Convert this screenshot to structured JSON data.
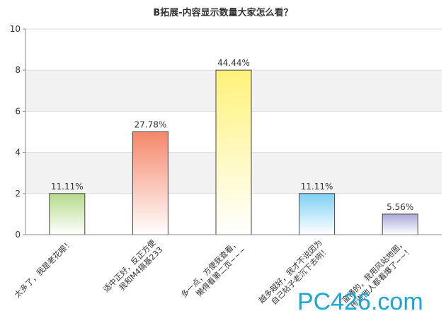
{
  "chart_data": {
    "type": "bar",
    "title": "B拓展-内容显示数量大家怎么看？",
    "categories": [
      "太多了，我是老花眼！",
      "适中正好，反正方便我和M4搞基233",
      "多一点，方便我查看，懒得看第二页~~~",
      "越多越好，我才不说因为自己帖子老沉下去咧！",
      "蛮横的，我用风站地图，传说他人都看爆了~~！"
    ],
    "values": [
      2,
      5,
      8,
      2,
      1
    ],
    "data_labels": [
      "11.11%",
      "27.78%",
      "44.44%",
      "11.11%",
      "5.56%"
    ],
    "colors": [
      "#b5da8a",
      "#f4876a",
      "#fff27a",
      "#7ed0f4",
      "#a9a8d8"
    ],
    "ylim": [
      0,
      10
    ],
    "yticks": [
      0,
      2,
      4,
      6,
      8,
      10
    ],
    "grid": true
  },
  "watermark": "PC426.com"
}
